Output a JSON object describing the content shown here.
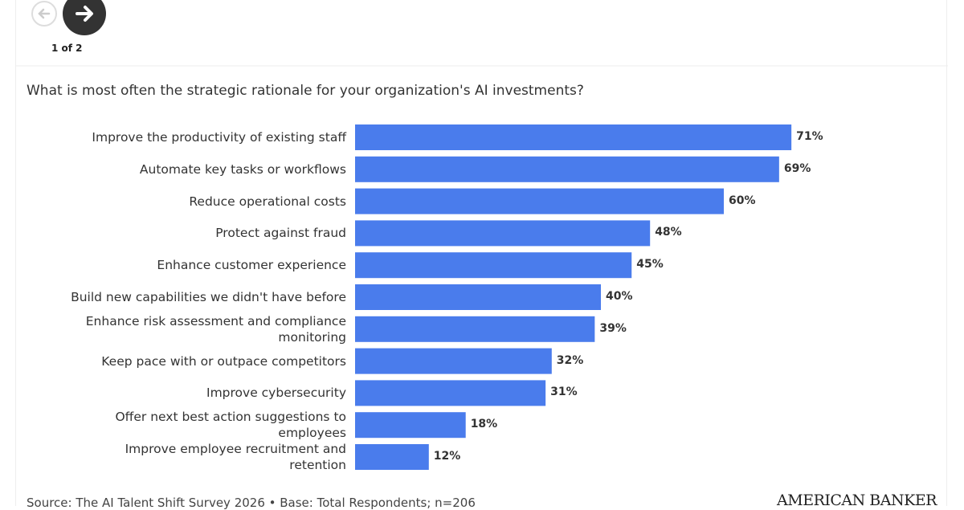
{
  "pager": "1 of 2",
  "brand": "AMERICAN BANKER",
  "chart_data": {
    "type": "bar",
    "orientation": "horizontal",
    "title": "What is most often the strategic rationale for your organization's AI investments?",
    "source": "Source: The AI Talent Shift Survey 2026 • Base: Total Respondents; n=206",
    "categories": [
      "Improve the productivity of existing staff",
      "Automate key tasks or workflows",
      "Reduce operational costs",
      "Protect against fraud",
      "Enhance customer experience",
      "Build new capabilities we didn't have before",
      "Enhance risk assessment and compliance monitoring",
      "Keep pace with or outpace competitors",
      "Improve cybersecurity",
      "Offer next best action suggestions to employees",
      "Improve employee recruitment and retention"
    ],
    "values": [
      71,
      69,
      60,
      48,
      45,
      40,
      39,
      32,
      31,
      18,
      12
    ],
    "value_labels": [
      "71%",
      "69%",
      "60%",
      "48%",
      "45%",
      "40%",
      "39%",
      "32%",
      "31%",
      "18%",
      "12%"
    ],
    "color": "#4a7cec",
    "xlim": [
      0,
      100
    ]
  }
}
